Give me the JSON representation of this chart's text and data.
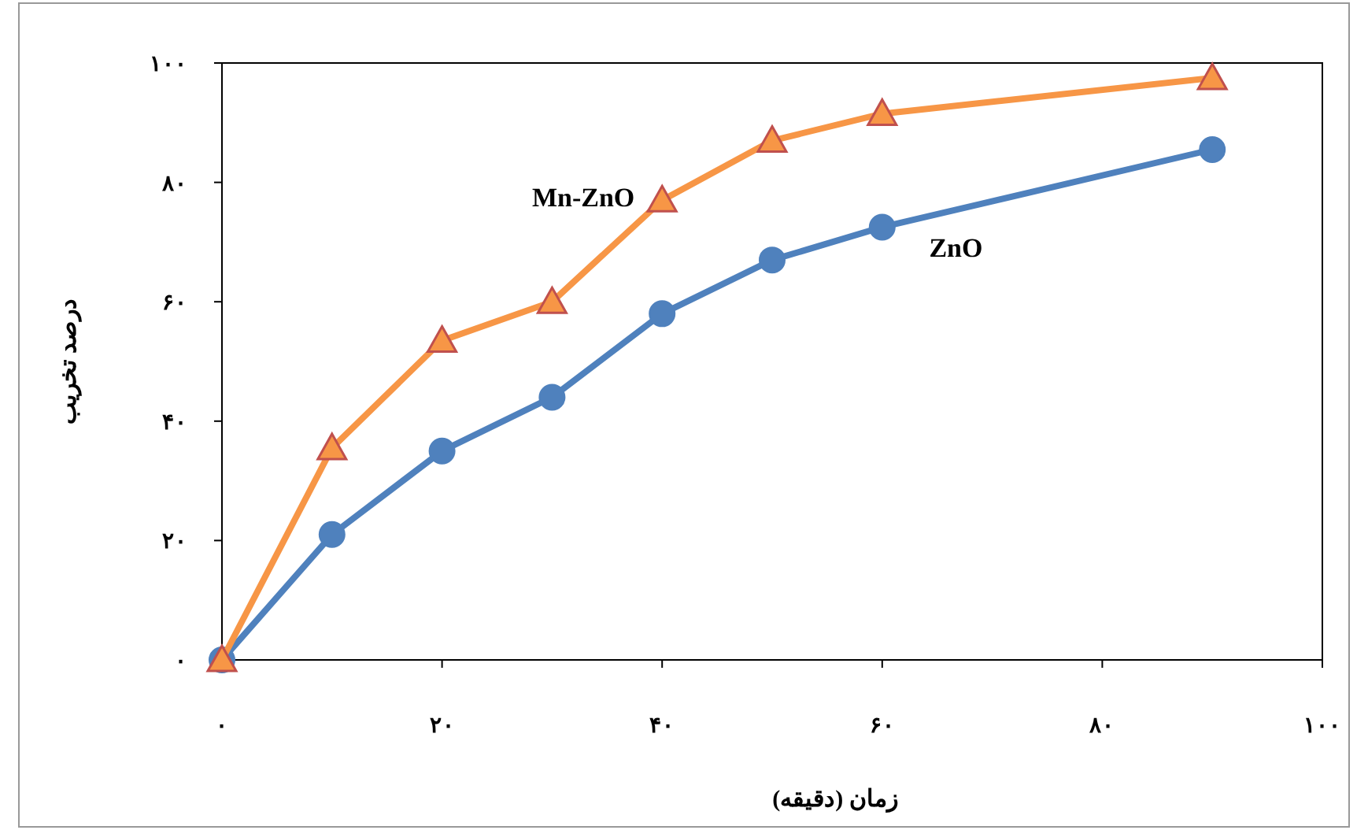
{
  "chart_data": {
    "type": "line",
    "xlabel": "زمان (دقیقه)",
    "ylabel": "درصد تخریب",
    "xlim": [
      0,
      100
    ],
    "xticks": [
      {
        "value": 0,
        "label": "۰"
      },
      {
        "value": 20,
        "label": "۲۰"
      },
      {
        "value": 40,
        "label": "۴۰"
      },
      {
        "value": 60,
        "label": "۶۰"
      },
      {
        "value": 80,
        "label": "۸۰"
      },
      {
        "value": 100,
        "label": "۱۰۰"
      }
    ],
    "ylim": [
      0,
      100
    ],
    "yticks": [
      {
        "value": 0,
        "label": "۰"
      },
      {
        "value": 20,
        "label": "۲۰"
      },
      {
        "value": 40,
        "label": "۴۰"
      },
      {
        "value": 60,
        "label": "۶۰"
      },
      {
        "value": 80,
        "label": "۸۰"
      },
      {
        "value": 100,
        "label": "۱۰۰"
      }
    ],
    "grid": false,
    "line_style": "solid",
    "series": [
      {
        "name": "ZnO",
        "color": "#4f81bd",
        "marker": "circle",
        "x": [
          0,
          10,
          20,
          30,
          40,
          50,
          60,
          90
        ],
        "values": [
          0,
          21,
          35,
          44,
          58,
          67,
          72.5,
          85.5
        ]
      },
      {
        "name": "Mn-ZnO",
        "color": "#f79646",
        "marker": "triangle",
        "x": [
          0,
          10,
          20,
          30,
          40,
          50,
          60,
          90
        ],
        "values": [
          0,
          35.5,
          53.5,
          60,
          77,
          87,
          91.5,
          97.5
        ]
      }
    ]
  }
}
